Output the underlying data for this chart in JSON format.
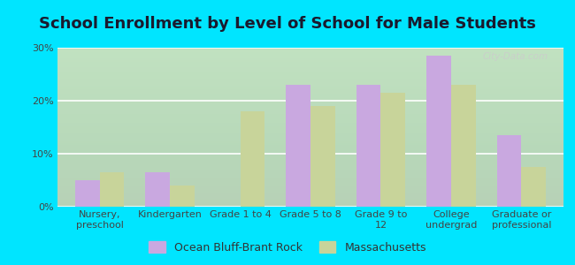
{
  "title": "School Enrollment by Level of School for Male Students",
  "categories": [
    "Nursery,\npreschool",
    "Kindergarten",
    "Grade 1 to 4",
    "Grade 5 to 8",
    "Grade 9 to\n12",
    "College\nundergrad",
    "Graduate or\nprofessional"
  ],
  "ocean_bluff": [
    5.0,
    6.5,
    0.0,
    23.0,
    23.0,
    28.5,
    13.5
  ],
  "massachusetts": [
    6.5,
    4.0,
    18.0,
    19.0,
    21.5,
    23.0,
    7.5
  ],
  "color_ocean": "#c9a8e0",
  "color_mass": "#c8d49a",
  "color_bg_outer": "#00e5ff",
  "color_plot_bg": "#e8f5e0",
  "ylim": [
    0,
    30
  ],
  "yticks": [
    0,
    10,
    20,
    30
  ],
  "ytick_labels": [
    "0%",
    "10%",
    "20%",
    "30%"
  ],
  "legend_label_ocean": "Ocean Bluff-Brant Rock",
  "legend_label_mass": "Massachusetts",
  "title_fontsize": 13,
  "tick_fontsize": 8,
  "legend_fontsize": 9,
  "title_color": "#1a1a2e"
}
